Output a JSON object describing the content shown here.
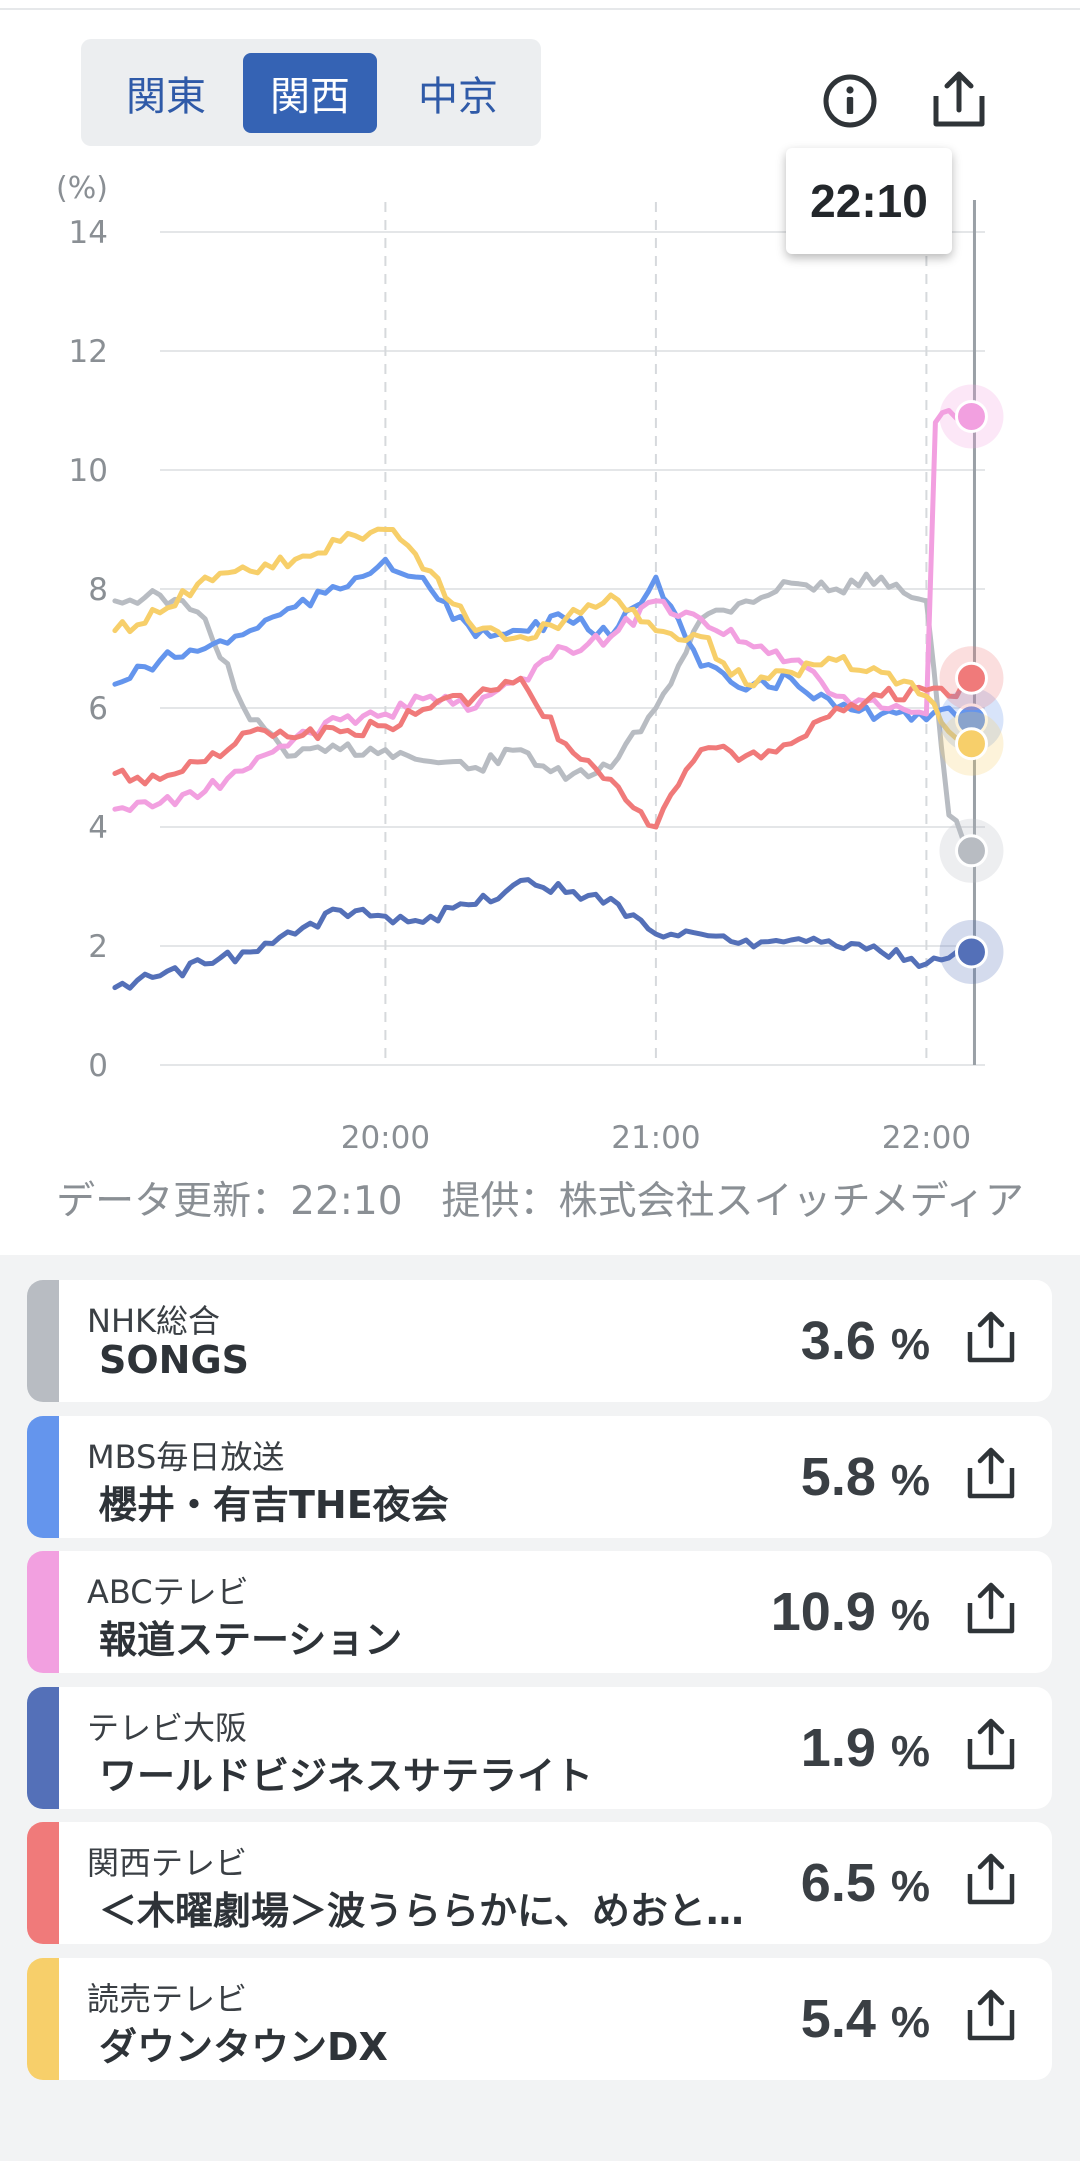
{
  "regions": {
    "tabs": [
      "関東",
      "関西",
      "中京"
    ],
    "active": "関西"
  },
  "toolbar": {
    "info_icon": "info-icon",
    "share_icon": "share-icon"
  },
  "tooltip": {
    "time": "22:10"
  },
  "footnote": "データ更新：22:10　提供：株式会社スイッチメディア",
  "chart_data": {
    "type": "line",
    "ylabel": "(%)",
    "ylim": [
      0,
      14
    ],
    "yticks": [
      "0",
      "2",
      "4",
      "6",
      "8",
      "10",
      "12",
      "14"
    ],
    "xticks": [
      "20:00",
      "21:00",
      "22:00"
    ],
    "grid": true,
    "series": [
      {
        "name": "NHK総合",
        "color": "#b8bcc2",
        "x": [
          "19:00",
          "19:10",
          "19:20",
          "19:30",
          "19:40",
          "19:50",
          "20:00",
          "20:10",
          "20:20",
          "20:30",
          "20:40",
          "20:50",
          "21:00",
          "21:10",
          "21:20",
          "21:30",
          "21:40",
          "21:50",
          "22:00",
          "22:05",
          "22:10"
        ],
        "values": [
          7.8,
          7.9,
          7.5,
          5.8,
          5.2,
          5.3,
          5.3,
          5.1,
          5.0,
          5.3,
          4.8,
          5.0,
          6.0,
          7.5,
          7.8,
          8.1,
          8.0,
          8.2,
          7.8,
          4.2,
          3.6
        ]
      },
      {
        "name": "MBS毎日放送",
        "color": "#6495ed",
        "x": [
          "19:00",
          "19:10",
          "19:20",
          "19:30",
          "19:40",
          "19:50",
          "20:00",
          "20:10",
          "20:20",
          "20:30",
          "20:40",
          "20:50",
          "21:00",
          "21:10",
          "21:20",
          "21:30",
          "21:40",
          "21:50",
          "22:00",
          "22:05",
          "22:10"
        ],
        "values": [
          6.4,
          6.8,
          7.0,
          7.3,
          7.7,
          8.0,
          8.5,
          8.0,
          7.2,
          7.3,
          7.5,
          7.2,
          8.2,
          6.7,
          6.3,
          6.5,
          6.0,
          5.9,
          5.8,
          6.0,
          5.8
        ]
      },
      {
        "name": "ABCテレビ",
        "color": "#f2a0e0",
        "x": [
          "19:00",
          "19:10",
          "19:20",
          "19:30",
          "19:40",
          "19:50",
          "20:00",
          "20:10",
          "20:20",
          "20:30",
          "20:40",
          "20:50",
          "21:00",
          "21:10",
          "21:20",
          "21:30",
          "21:40",
          "21:50",
          "22:00",
          "22:02",
          "22:05",
          "22:10"
        ],
        "values": [
          4.3,
          4.4,
          4.6,
          5.0,
          5.5,
          5.8,
          5.9,
          6.2,
          6.0,
          6.5,
          7.0,
          7.2,
          7.8,
          7.5,
          7.1,
          6.8,
          6.2,
          6.0,
          5.9,
          10.8,
          11.0,
          10.9
        ]
      },
      {
        "name": "テレビ大阪",
        "color": "#5470b8",
        "x": [
          "19:00",
          "19:10",
          "19:20",
          "19:30",
          "19:40",
          "19:50",
          "20:00",
          "20:10",
          "20:20",
          "20:30",
          "20:40",
          "20:50",
          "21:00",
          "21:10",
          "21:20",
          "21:30",
          "21:40",
          "21:50",
          "22:00",
          "22:05",
          "22:10"
        ],
        "values": [
          1.3,
          1.5,
          1.7,
          1.9,
          2.2,
          2.6,
          2.5,
          2.5,
          2.7,
          3.1,
          2.9,
          2.8,
          2.2,
          2.2,
          2.1,
          2.1,
          2.0,
          1.9,
          1.7,
          1.8,
          1.9
        ]
      },
      {
        "name": "関西テレビ",
        "color": "#f07a7a",
        "x": [
          "19:00",
          "19:10",
          "19:20",
          "19:30",
          "19:40",
          "19:50",
          "20:00",
          "20:10",
          "20:20",
          "20:30",
          "20:40",
          "20:50",
          "21:00",
          "21:10",
          "21:20",
          "21:30",
          "21:40",
          "21:50",
          "22:00",
          "22:05",
          "22:10"
        ],
        "values": [
          4.9,
          4.8,
          5.1,
          5.6,
          5.5,
          5.6,
          5.7,
          6.0,
          6.2,
          6.5,
          5.4,
          4.8,
          4.0,
          5.3,
          5.2,
          5.4,
          6.0,
          6.2,
          6.3,
          6.2,
          6.5
        ]
      },
      {
        "name": "読売テレビ",
        "color": "#f7cf6a",
        "x": [
          "19:00",
          "19:10",
          "19:20",
          "19:30",
          "19:40",
          "19:50",
          "20:00",
          "20:10",
          "20:20",
          "20:30",
          "20:40",
          "20:50",
          "21:00",
          "21:10",
          "21:20",
          "21:30",
          "21:40",
          "21:50",
          "22:00",
          "22:05",
          "22:10"
        ],
        "values": [
          7.3,
          7.6,
          8.2,
          8.3,
          8.5,
          8.8,
          9.0,
          8.3,
          7.3,
          7.2,
          7.5,
          7.9,
          7.3,
          7.2,
          6.4,
          6.6,
          6.8,
          6.6,
          6.2,
          5.6,
          5.4
        ]
      }
    ]
  },
  "channels": [
    {
      "channel": "NHK総合",
      "program": "SONGS",
      "value": "3.6",
      "unit": "%",
      "color": "#b8bcc2"
    },
    {
      "channel": "MBS毎日放送",
      "program": "櫻井・有吉THE夜会",
      "value": "5.8",
      "unit": "%",
      "color": "#6495ed"
    },
    {
      "channel": "ABCテレビ",
      "program": "報道ステーション",
      "value": "10.9",
      "unit": "%",
      "color": "#f2a0e0"
    },
    {
      "channel": "テレビ大阪",
      "program": "ワールドビジネスサテライト",
      "value": "1.9",
      "unit": "%",
      "color": "#5470b8"
    },
    {
      "channel": "関西テレビ",
      "program": "＜木曜劇場＞波うららかに、めおと…",
      "value": "6.5",
      "unit": "%",
      "color": "#f07a7a"
    },
    {
      "channel": "読売テレビ",
      "program": "ダウンタウンDX",
      "value": "5.4",
      "unit": "%",
      "color": "#f7cf6a"
    }
  ]
}
